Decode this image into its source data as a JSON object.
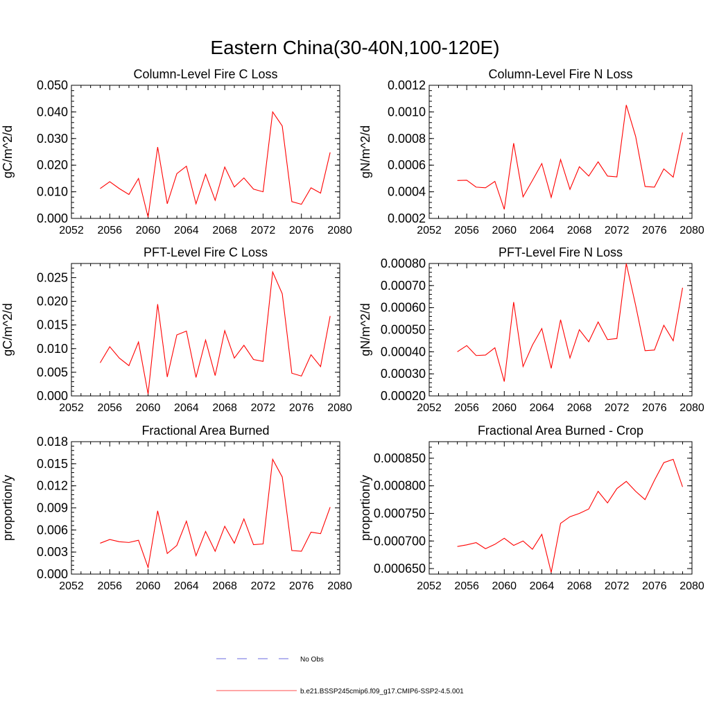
{
  "figure": {
    "title": "Eastern China(30-40N,100-120E)"
  },
  "legend": {
    "items": [
      {
        "label": "No Obs",
        "color": "#6a6adf",
        "dash": true
      },
      {
        "label": "b.e21.BSSP245cmip6.f09_g17.CMIP6-SSP2-4.5.001",
        "color": "#ff4d4d",
        "dash": false
      }
    ]
  },
  "chart_data": [
    {
      "type": "line",
      "title": "Column-Level Fire C Loss",
      "ylabel": "gC/m^2/d",
      "xlim": [
        2052,
        2080
      ],
      "ylim": [
        0.0,
        0.05
      ],
      "xticks": [
        "2052",
        "2056",
        "2060",
        "2064",
        "2068",
        "2072",
        "2076",
        "2080"
      ],
      "yticks": [
        "0.000",
        "0.010",
        "0.020",
        "0.030",
        "0.040",
        "0.050"
      ],
      "x": [
        2055,
        2056,
        2057,
        2058,
        2059,
        2060,
        2061,
        2062,
        2063,
        2064,
        2065,
        2066,
        2067,
        2068,
        2069,
        2070,
        2071,
        2072,
        2073,
        2074,
        2075,
        2076,
        2077,
        2078,
        2079
      ],
      "series": [
        {
          "color": "#ff0000",
          "values": [
            0.0112,
            0.0138,
            0.0112,
            0.009,
            0.015,
            0.0005,
            0.0268,
            0.0055,
            0.0168,
            0.0196,
            0.0055,
            0.0166,
            0.0068,
            0.0193,
            0.0118,
            0.0152,
            0.011,
            0.01,
            0.04,
            0.0347,
            0.0063,
            0.0053,
            0.0115,
            0.0095,
            0.0248
          ]
        }
      ]
    },
    {
      "type": "line",
      "title": "Column-Level Fire N Loss",
      "ylabel": "gN/m^2/d",
      "xlim": [
        2052,
        2080
      ],
      "ylim": [
        0.0002,
        0.0012
      ],
      "xticks": [
        "2052",
        "2056",
        "2060",
        "2064",
        "2068",
        "2072",
        "2076",
        "2080"
      ],
      "yticks": [
        "0.0002",
        "0.0004",
        "0.0006",
        "0.0008",
        "0.0010",
        "0.0012"
      ],
      "x": [
        2055,
        2056,
        2057,
        2058,
        2059,
        2060,
        2061,
        2062,
        2063,
        2064,
        2065,
        2066,
        2067,
        2068,
        2069,
        2070,
        2071,
        2072,
        2073,
        2074,
        2075,
        2076,
        2077,
        2078,
        2079
      ],
      "series": [
        {
          "color": "#ff0000",
          "values": [
            0.000485,
            0.000487,
            0.000435,
            0.00043,
            0.000478,
            0.000268,
            0.000765,
            0.000362,
            0.000485,
            0.000612,
            0.000358,
            0.000642,
            0.000418,
            0.000588,
            0.000518,
            0.000625,
            0.000518,
            0.000512,
            0.001052,
            0.000815,
            0.00044,
            0.000435,
            0.000572,
            0.00051,
            0.000845
          ]
        }
      ]
    },
    {
      "type": "line",
      "title": "PFT-Level Fire C Loss",
      "ylabel": "gC/m^2/d",
      "xlim": [
        2052,
        2080
      ],
      "ylim": [
        0.0,
        0.028
      ],
      "xticks": [
        "2052",
        "2056",
        "2060",
        "2064",
        "2068",
        "2072",
        "2076",
        "2080"
      ],
      "yticks": [
        "0.000",
        "0.005",
        "0.010",
        "0.015",
        "0.020",
        "0.025"
      ],
      "ytickvals": [
        0.0,
        0.005,
        0.01,
        0.015,
        0.02,
        0.025
      ],
      "x": [
        2055,
        2056,
        2057,
        2058,
        2059,
        2060,
        2061,
        2062,
        2063,
        2064,
        2065,
        2066,
        2067,
        2068,
        2069,
        2070,
        2071,
        2072,
        2073,
        2074,
        2075,
        2076,
        2077,
        2078,
        2079
      ],
      "series": [
        {
          "color": "#ff0000",
          "values": [
            0.007,
            0.0104,
            0.008,
            0.0064,
            0.0114,
            0.0004,
            0.0194,
            0.004,
            0.0129,
            0.0137,
            0.0039,
            0.0118,
            0.0043,
            0.0138,
            0.008,
            0.0107,
            0.0077,
            0.0073,
            0.0262,
            0.0216,
            0.0048,
            0.0042,
            0.0087,
            0.0062,
            0.0169
          ]
        }
      ]
    },
    {
      "type": "line",
      "title": "PFT-Level Fire N Loss",
      "ylabel": "gN/m^2/d",
      "xlim": [
        2052,
        2080
      ],
      "ylim": [
        0.0002,
        0.0008
      ],
      "xticks": [
        "2052",
        "2056",
        "2060",
        "2064",
        "2068",
        "2072",
        "2076",
        "2080"
      ],
      "yticks": [
        "0.00020",
        "0.00030",
        "0.00040",
        "0.00050",
        "0.00060",
        "0.00070",
        "0.00080"
      ],
      "x": [
        2055,
        2056,
        2057,
        2058,
        2059,
        2060,
        2061,
        2062,
        2063,
        2064,
        2065,
        2066,
        2067,
        2068,
        2069,
        2070,
        2071,
        2072,
        2073,
        2074,
        2075,
        2076,
        2077,
        2078,
        2079
      ],
      "series": [
        {
          "color": "#ff0000",
          "values": [
            0.0004,
            0.000428,
            0.000383,
            0.000385,
            0.000418,
            0.000265,
            0.000625,
            0.000333,
            0.00043,
            0.000505,
            0.000325,
            0.000545,
            0.000372,
            0.0005,
            0.000445,
            0.000535,
            0.000455,
            0.00046,
            0.0008,
            0.00061,
            0.000405,
            0.000408,
            0.00052,
            0.00045,
            0.00069
          ]
        }
      ]
    },
    {
      "type": "line",
      "title": "Fractional Area Burned",
      "ylabel": "proportion/y",
      "xlim": [
        2052,
        2080
      ],
      "ylim": [
        0.0,
        0.018
      ],
      "xticks": [
        "2052",
        "2056",
        "2060",
        "2064",
        "2068",
        "2072",
        "2076",
        "2080"
      ],
      "yticks": [
        "0.000",
        "0.003",
        "0.006",
        "0.009",
        "0.012",
        "0.015",
        "0.018"
      ],
      "x": [
        2055,
        2056,
        2057,
        2058,
        2059,
        2060,
        2061,
        2062,
        2063,
        2064,
        2065,
        2066,
        2067,
        2068,
        2069,
        2070,
        2071,
        2072,
        2073,
        2074,
        2075,
        2076,
        2077,
        2078,
        2079
      ],
      "series": [
        {
          "color": "#ff0000",
          "values": [
            0.0042,
            0.0047,
            0.0044,
            0.0043,
            0.0046,
            0.0009,
            0.0086,
            0.0028,
            0.0039,
            0.0072,
            0.0025,
            0.0058,
            0.0031,
            0.0065,
            0.0042,
            0.0075,
            0.004,
            0.0041,
            0.0156,
            0.0132,
            0.0032,
            0.0031,
            0.0057,
            0.0055,
            0.0091
          ]
        }
      ]
    },
    {
      "type": "line",
      "title": "Fractional Area Burned - Crop",
      "ylabel": "proportion/y",
      "xlim": [
        2052,
        2080
      ],
      "ylim": [
        0.00064,
        0.00088
      ],
      "xticks": [
        "2052",
        "2056",
        "2060",
        "2064",
        "2068",
        "2072",
        "2076",
        "2080"
      ],
      "yticks": [
        "0.000650",
        "0.000700",
        "0.000750",
        "0.000800",
        "0.000850"
      ],
      "ytickvals": [
        0.00065,
        0.0007,
        0.00075,
        0.0008,
        0.00085
      ],
      "x": [
        2055,
        2056,
        2057,
        2058,
        2059,
        2060,
        2061,
        2062,
        2063,
        2064,
        2065,
        2066,
        2067,
        2068,
        2069,
        2070,
        2071,
        2072,
        2073,
        2074,
        2075,
        2076,
        2077,
        2078,
        2079
      ],
      "series": [
        {
          "color": "#ff0000",
          "values": [
            0.00069,
            0.000693,
            0.000697,
            0.000686,
            0.000694,
            0.000705,
            0.000692,
            0.0007,
            0.000685,
            0.000712,
            0.000643,
            0.000732,
            0.000744,
            0.00075,
            0.000758,
            0.00079,
            0.000769,
            0.000795,
            0.000808,
            0.00079,
            0.000775,
            0.00081,
            0.000842,
            0.000848,
            0.000798
          ]
        }
      ]
    }
  ]
}
